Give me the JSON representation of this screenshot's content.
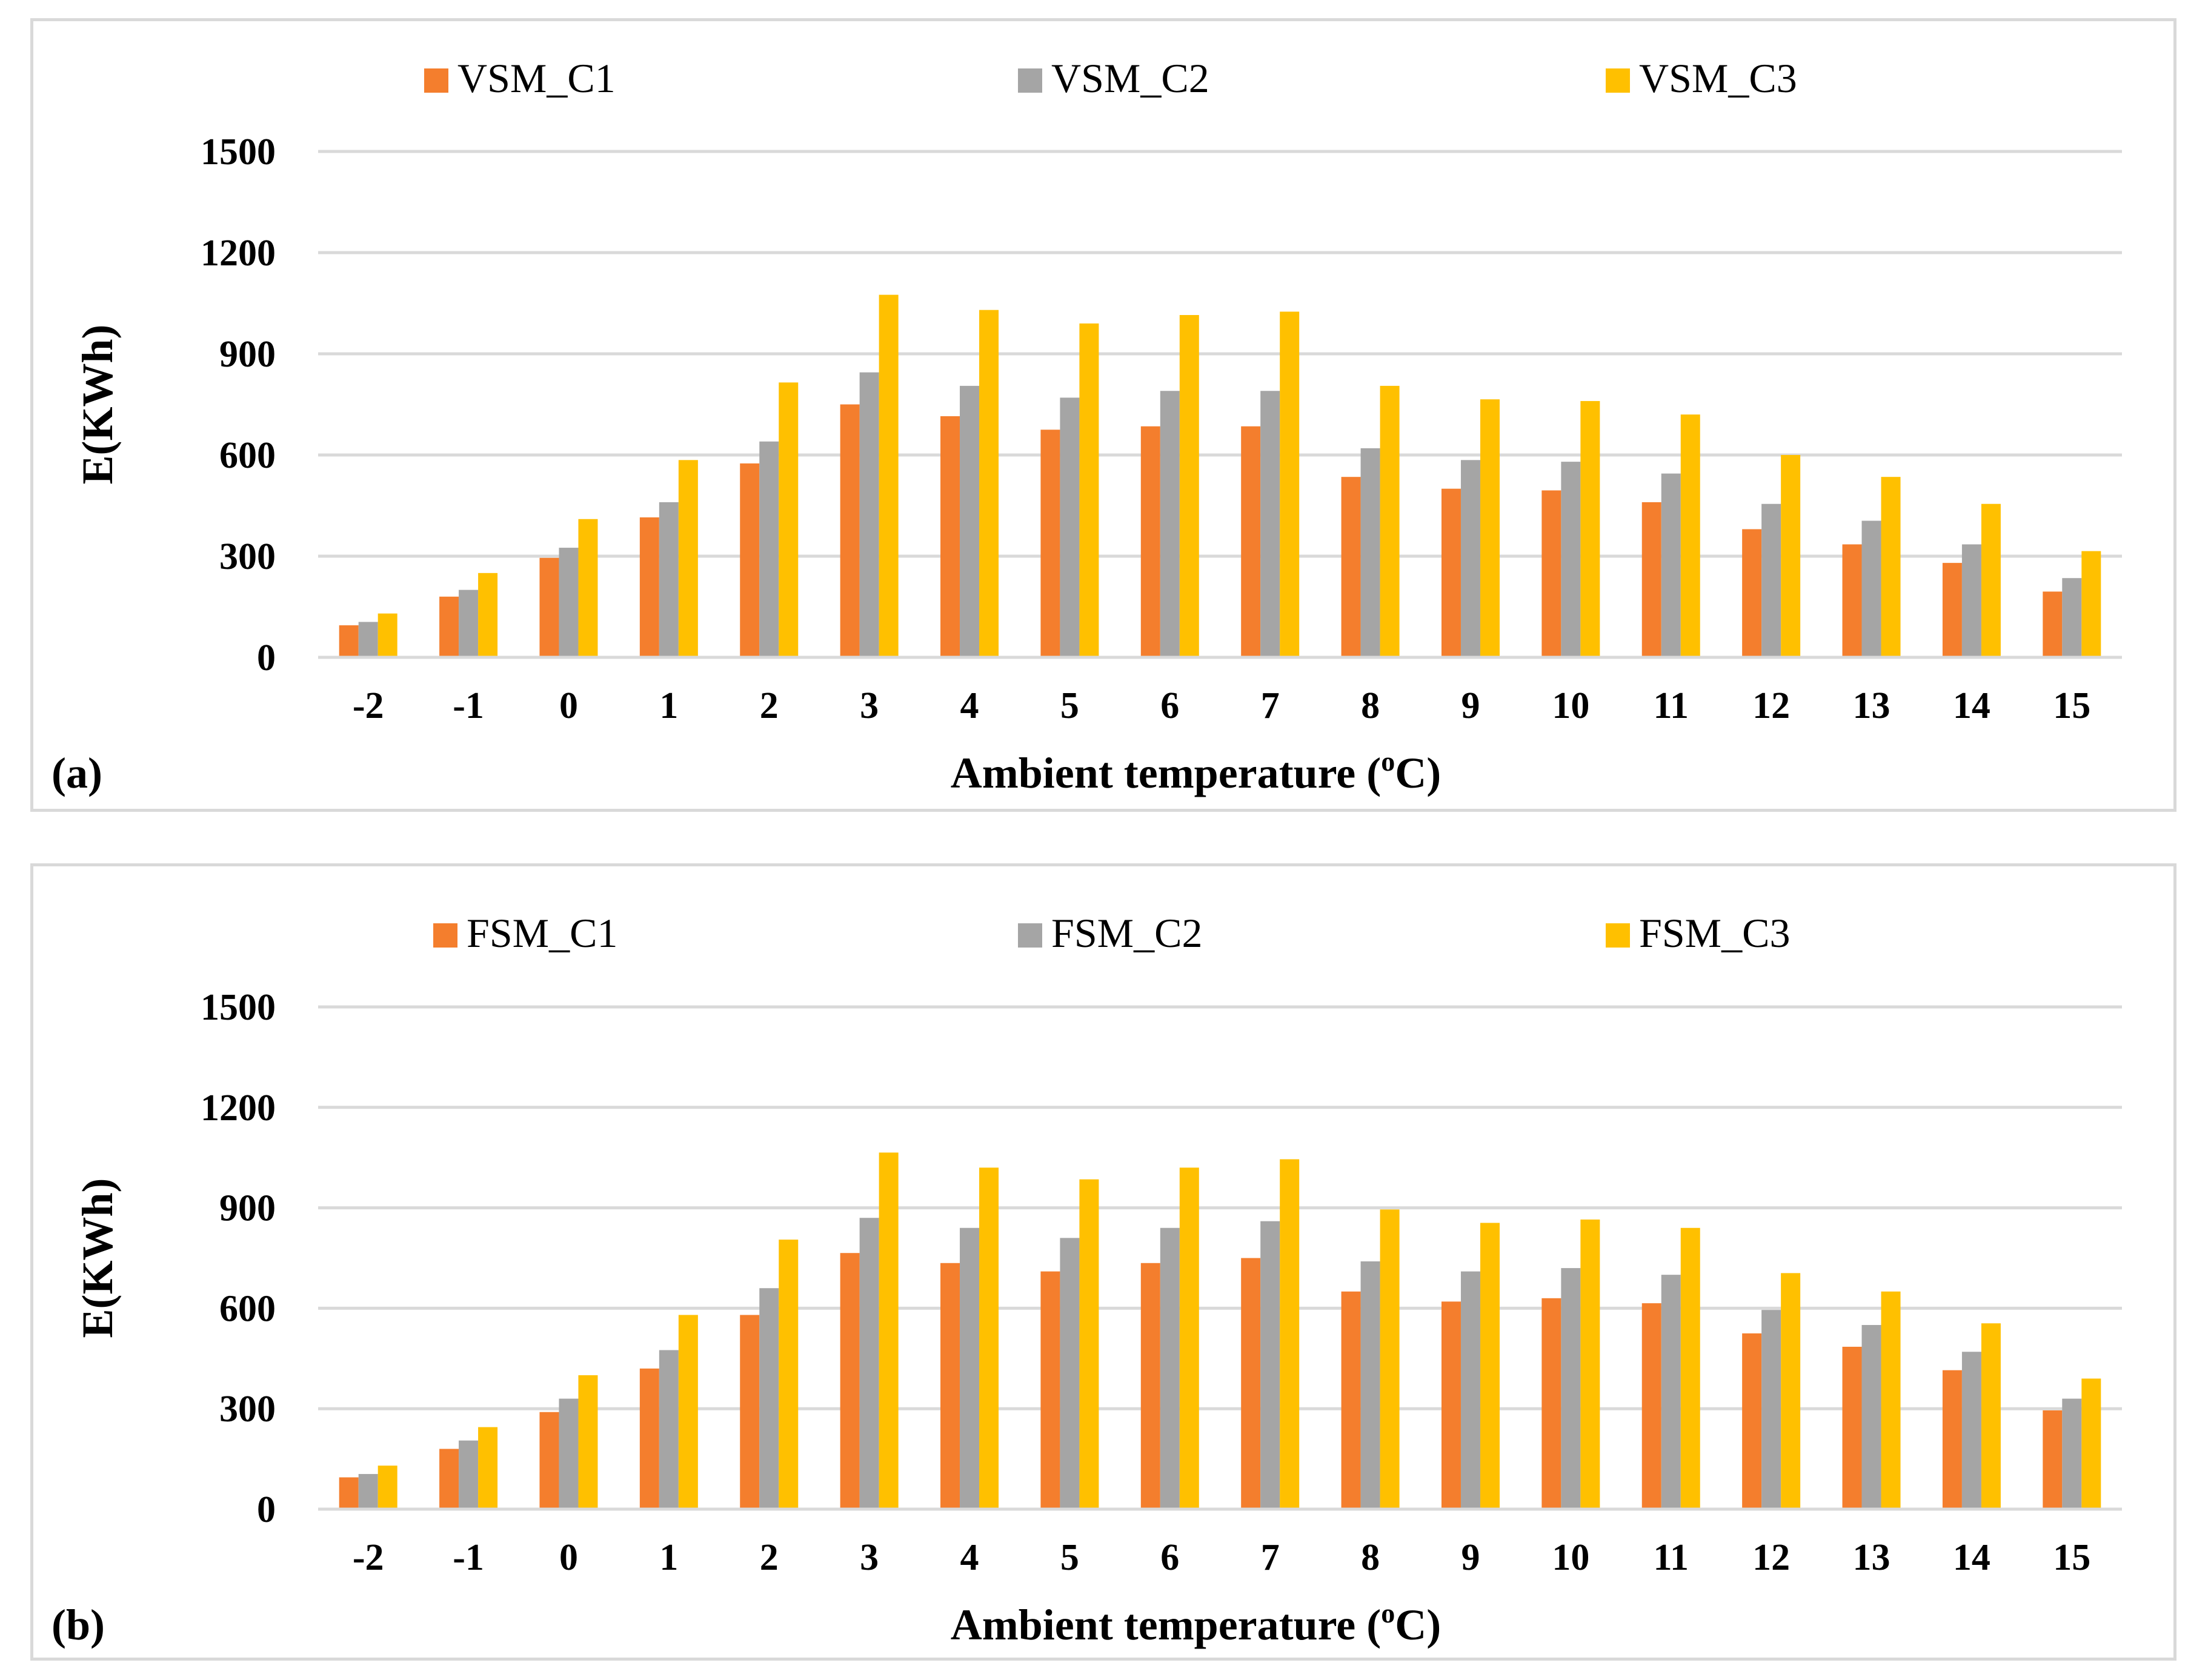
{
  "chart_data": [
    {
      "type": "bar",
      "panel_label": "(a)",
      "xlabel": "Ambient temperature (",
      "xlabel_sup": "o",
      "xlabel_end": "C)",
      "ylabel": "E(KWh)",
      "ylim": [
        0,
        1500
      ],
      "yticks": [
        "0",
        "300",
        "600",
        "900",
        "1200",
        "1500"
      ],
      "grid": true,
      "legend_position": "top",
      "categories": [
        "-2",
        "-1",
        "0",
        "1",
        "2",
        "3",
        "4",
        "5",
        "6",
        "7",
        "8",
        "9",
        "10",
        "11",
        "12",
        "13",
        "14",
        "15"
      ],
      "series": [
        {
          "name": "VSM_C1",
          "color": "#f47e2d",
          "values": [
            95,
            180,
            295,
            415,
            575,
            750,
            715,
            675,
            685,
            685,
            535,
            500,
            495,
            460,
            380,
            335,
            280,
            195
          ]
        },
        {
          "name": "VSM_C2",
          "color": "#a5a5a5",
          "values": [
            105,
            200,
            325,
            460,
            640,
            845,
            805,
            770,
            790,
            790,
            620,
            585,
            580,
            545,
            455,
            405,
            335,
            235
          ]
        },
        {
          "name": "VSM_C3",
          "color": "#ffc000",
          "values": [
            130,
            250,
            410,
            585,
            815,
            1075,
            1030,
            990,
            1015,
            1025,
            805,
            765,
            760,
            720,
            600,
            535,
            455,
            315
          ]
        }
      ]
    },
    {
      "type": "bar",
      "panel_label": "(b)",
      "xlabel": "Ambient temperature (",
      "xlabel_sup": "o",
      "xlabel_end": "C)",
      "ylabel": "E(KWh)",
      "ylim": [
        0,
        1500
      ],
      "yticks": [
        "0",
        "300",
        "600",
        "900",
        "1200",
        "1500"
      ],
      "grid": true,
      "legend_position": "top",
      "categories": [
        "-2",
        "-1",
        "0",
        "1",
        "2",
        "3",
        "4",
        "5",
        "6",
        "7",
        "8",
        "9",
        "10",
        "11",
        "12",
        "13",
        "14",
        "15"
      ],
      "series": [
        {
          "name": "FSM_C1",
          "color": "#f47e2d",
          "values": [
            95,
            180,
            290,
            420,
            580,
            765,
            735,
            710,
            735,
            750,
            650,
            620,
            630,
            615,
            525,
            485,
            415,
            295
          ]
        },
        {
          "name": "FSM_C2",
          "color": "#a5a5a5",
          "values": [
            105,
            205,
            330,
            475,
            660,
            870,
            840,
            810,
            840,
            860,
            740,
            710,
            720,
            700,
            595,
            550,
            470,
            330
          ]
        },
        {
          "name": "FSM_C3",
          "color": "#ffc000",
          "values": [
            130,
            245,
            400,
            580,
            805,
            1065,
            1020,
            985,
            1020,
            1045,
            895,
            855,
            865,
            840,
            705,
            650,
            555,
            390
          ]
        }
      ]
    }
  ]
}
